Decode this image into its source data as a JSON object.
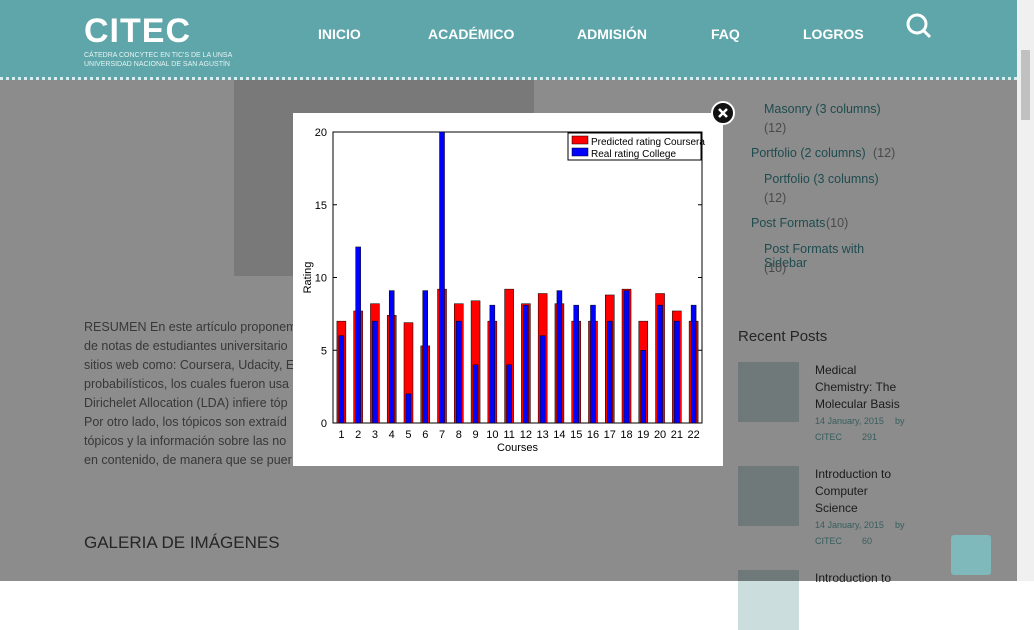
{
  "header": {
    "logo": "CITEC",
    "logo_sub": [
      "CÁTEDRA CONCYTEC EN TIC'S DE LA UNSA",
      "UNIVERSIDAD NACIONAL DE SAN AGUSTÍN"
    ],
    "nav": [
      "INICIO",
      "ACADÉMICO",
      "ADMISIÓN",
      "FAQ",
      "LOGROS"
    ]
  },
  "content": {
    "paragraph_lines": [
      "RESUMEN En este artículo proponem",
      "de notas de estudiantes universitario",
      "sitios web como: Coursera, Udacity, E",
      "probabilísticos, los cuales fueron usa",
      "Dirichelet Allocation (LDA) infiere tóp",
      "Por otro lado, los tópicos son extraíd",
      "tópicos y la información sobre las no",
      "en contenido, de manera que se puer"
    ],
    "gallery_title": "GALERIA DE IMÁGENES"
  },
  "sidebar": {
    "categories": [
      {
        "name": "Masonry (3 columns)",
        "count": "(12)",
        "sub": true
      },
      {
        "name": "Portfolio (2 columns)",
        "count": "(12)",
        "sub": false
      },
      {
        "name": "Portfolio (3 columns)",
        "count": "(12)",
        "sub": true
      },
      {
        "name": "Post Formats",
        "count": "(10)",
        "sub": false
      },
      {
        "name": "Post Formats with Sidebar",
        "count": "(10)",
        "sub": true
      }
    ],
    "recent_title": "Recent Posts",
    "posts": [
      {
        "title": "Medical Chemistry: The Molecular Basis",
        "date": "14 January, 2015",
        "by": "by",
        "author": "CITEC",
        "views": "291"
      },
      {
        "title": "Introduction to Computer Science",
        "date": "14 January, 2015",
        "by": "by",
        "author": "CITEC",
        "views": "60"
      },
      {
        "title": "Introduction to"
      }
    ]
  },
  "lightbox": {
    "chart": {
      "type": "bar",
      "xlabel": "Courses",
      "ylabel": "Rating",
      "categories": [
        "1",
        "2",
        "3",
        "4",
        "5",
        "6",
        "7",
        "8",
        "9",
        "10",
        "11",
        "12",
        "13",
        "14",
        "15",
        "16",
        "17",
        "18",
        "19",
        "20",
        "21",
        "22"
      ],
      "ylim": [
        0,
        20
      ],
      "yticks": [
        0,
        5,
        10,
        15,
        20
      ],
      "series": [
        {
          "name": "Predicted rating Coursera",
          "color": "#ff0000",
          "values": [
            7.0,
            7.7,
            8.2,
            7.4,
            6.9,
            5.3,
            9.2,
            8.2,
            8.4,
            7.0,
            9.2,
            8.2,
            8.9,
            8.2,
            7.0,
            7.0,
            8.8,
            9.2,
            7.0,
            8.9,
            7.7,
            7.0
          ]
        },
        {
          "name": "Real rating College",
          "color": "#0000ff",
          "values": [
            6.0,
            12.1,
            7.0,
            9.1,
            2.0,
            9.1,
            20,
            7.0,
            4.0,
            8.1,
            4.0,
            8.1,
            6.0,
            9.1,
            8.1,
            8.1,
            7.0,
            9.1,
            5.0,
            8.1,
            7.0,
            8.1
          ]
        }
      ]
    }
  }
}
